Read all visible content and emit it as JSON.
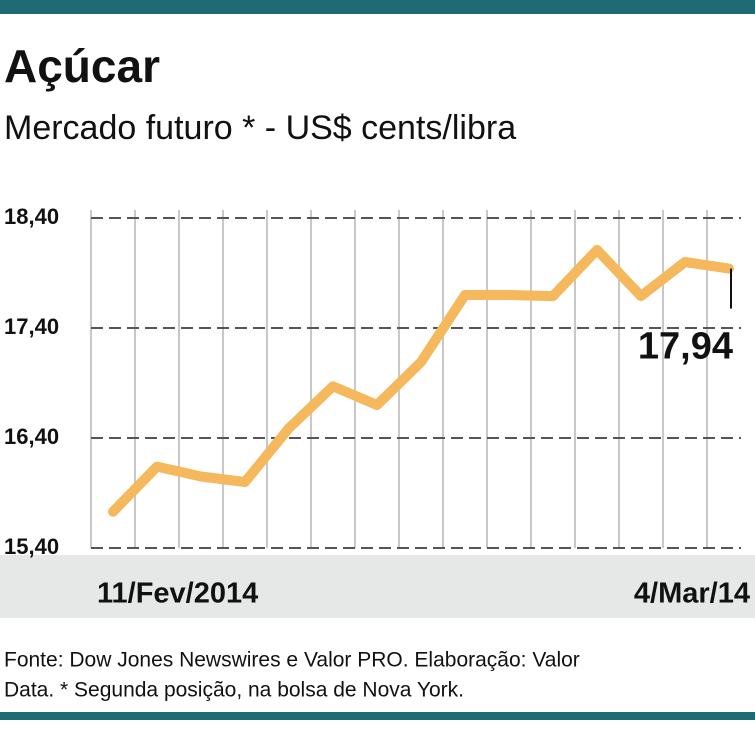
{
  "chart_data": {
    "type": "line",
    "title": "Açúcar",
    "subtitle": "Mercado futuro * -  US$ cents/libra",
    "categories": [
      "11/Fev/2014",
      null,
      null,
      null,
      null,
      null,
      null,
      null,
      null,
      null,
      null,
      null,
      null,
      null,
      "4/Mar/14"
    ],
    "series": [
      {
        "color": "#f5b85c",
        "values": [
          15.73,
          16.14,
          16.05,
          16.0,
          16.49,
          16.87,
          16.7,
          17.09,
          17.7,
          17.7,
          17.69,
          18.11,
          17.69,
          18.0,
          17.94
        ],
        "value_labels": [
          null,
          null,
          null,
          null,
          null,
          null,
          null,
          null,
          null,
          null,
          null,
          null,
          null,
          null,
          "17,94"
        ]
      }
    ],
    "ylim": [
      15.4,
      18.4
    ],
    "yticks": [
      {
        "value": 15.4,
        "label": "15,40"
      },
      {
        "value": 16.4,
        "label": "16,40"
      },
      {
        "value": 17.4,
        "label": "17,40"
      },
      {
        "value": 18.4,
        "label": "18,40"
      }
    ],
    "grid": true,
    "source": [
      "Fonte: Dow Jones Newswires e Valor PRO. Elaboração: Valor",
      "Data. * Segunda posição, na bolsa de Nova York."
    ]
  }
}
